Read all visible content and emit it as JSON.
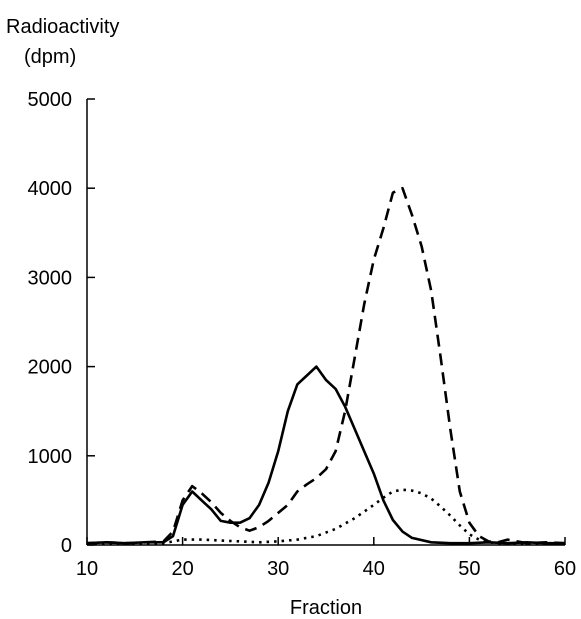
{
  "chart_data": {
    "type": "line",
    "ylabel_line1": "Radioactivity",
    "ylabel_line2": "(dpm)",
    "xlabel": "Fraction",
    "xlim": [
      10,
      60
    ],
    "ylim": [
      0,
      5000
    ],
    "xticks": [
      10,
      20,
      30,
      40,
      50,
      60
    ],
    "yticks": [
      0,
      1000,
      2000,
      3000,
      4000,
      5000
    ],
    "grid": false,
    "legend": "none",
    "series": [
      {
        "style": "solid",
        "color": "#000000",
        "x": [
          10,
          12,
          14,
          16,
          18,
          19,
          20,
          21,
          22,
          23,
          24,
          25,
          26,
          27,
          28,
          29,
          30,
          31,
          32,
          33,
          34,
          35,
          36,
          37,
          38,
          39,
          40,
          41,
          42,
          43,
          44,
          46,
          48,
          50,
          52,
          54,
          56,
          58,
          60
        ],
        "y": [
          20,
          30,
          20,
          30,
          30,
          100,
          450,
          600,
          500,
          400,
          270,
          250,
          250,
          300,
          450,
          700,
          1050,
          1500,
          1800,
          1900,
          2000,
          1850,
          1750,
          1550,
          1300,
          1050,
          800,
          500,
          280,
          150,
          80,
          30,
          20,
          20,
          30,
          20,
          30,
          20,
          20
        ]
      },
      {
        "style": "dashed",
        "color": "#000000",
        "x": [
          10,
          12,
          14,
          16,
          18,
          19,
          20,
          21,
          22,
          23,
          24,
          25,
          26,
          27,
          28,
          29,
          30,
          31,
          32,
          33,
          34,
          35,
          36,
          37,
          38,
          39,
          40,
          41,
          42,
          43,
          44,
          45,
          46,
          47,
          48,
          49,
          50,
          51,
          52,
          53,
          54,
          55,
          56,
          58,
          60
        ],
        "y": [
          20,
          30,
          20,
          30,
          40,
          150,
          500,
          660,
          580,
          480,
          360,
          270,
          200,
          160,
          200,
          270,
          360,
          450,
          600,
          680,
          750,
          850,
          1050,
          1500,
          2100,
          2700,
          3200,
          3550,
          3950,
          4000,
          3700,
          3350,
          2850,
          2100,
          1300,
          600,
          250,
          100,
          40,
          30,
          60,
          40,
          20,
          30,
          20
        ]
      },
      {
        "style": "dotted",
        "color": "#000000",
        "x": [
          10,
          14,
          18,
          20,
          22,
          24,
          26,
          28,
          30,
          32,
          34,
          36,
          38,
          40,
          41,
          42,
          43,
          44,
          45,
          46,
          47,
          48,
          49,
          50,
          51,
          52,
          54,
          56,
          58,
          60
        ],
        "y": [
          10,
          10,
          20,
          60,
          60,
          50,
          40,
          30,
          40,
          60,
          100,
          180,
          300,
          450,
          530,
          600,
          620,
          610,
          580,
          520,
          430,
          330,
          220,
          120,
          60,
          30,
          10,
          20,
          10,
          10
        ]
      }
    ]
  }
}
